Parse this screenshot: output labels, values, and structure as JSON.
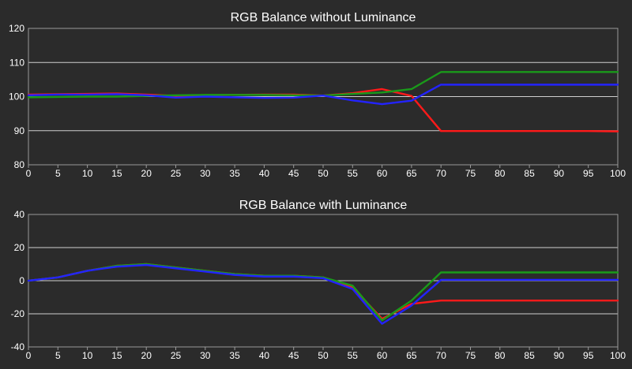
{
  "chart_data": [
    {
      "type": "line",
      "title": "RGB Balance without Luminance",
      "xlabel": "",
      "ylabel": "",
      "xlim": [
        0,
        100
      ],
      "ylim": [
        80,
        120
      ],
      "x": [
        0,
        5,
        10,
        15,
        20,
        25,
        30,
        35,
        40,
        45,
        50,
        55,
        60,
        65,
        70,
        75,
        80,
        85,
        90,
        95,
        100
      ],
      "x_ticks": [
        0,
        5,
        10,
        15,
        20,
        25,
        30,
        35,
        40,
        45,
        50,
        55,
        60,
        65,
        70,
        75,
        80,
        85,
        90,
        95,
        100
      ],
      "y_ticks": [
        80,
        90,
        100,
        110,
        120
      ],
      "grid": "horizontal",
      "series": [
        {
          "color": "#ff1a1a",
          "values": [
            100.6,
            100.7,
            100.8,
            100.9,
            100.6,
            100.2,
            100.4,
            100.5,
            100.6,
            100.6,
            100.3,
            101.0,
            102.2,
            100.2,
            89.9,
            89.9,
            89.9,
            89.9,
            89.9,
            89.9,
            89.8
          ]
        },
        {
          "color": "#1a9a1a",
          "values": [
            99.8,
            99.9,
            100.0,
            100.0,
            100.2,
            100.4,
            100.5,
            100.5,
            100.5,
            100.4,
            100.3,
            100.8,
            101.2,
            102.2,
            107.2,
            107.2,
            107.2,
            107.2,
            107.2,
            107.2,
            107.2
          ]
        },
        {
          "color": "#2323ff",
          "values": [
            100.4,
            100.6,
            100.6,
            100.7,
            100.4,
            99.7,
            100.0,
            99.8,
            99.6,
            99.7,
            100.3,
            98.9,
            97.8,
            98.8,
            103.5,
            103.5,
            103.5,
            103.5,
            103.5,
            103.5,
            103.5
          ]
        }
      ]
    },
    {
      "type": "line",
      "title": "RGB Balance with Luminance",
      "xlabel": "",
      "ylabel": "",
      "xlim": [
        0,
        100
      ],
      "ylim": [
        -40,
        40
      ],
      "x": [
        0,
        5,
        10,
        15,
        20,
        25,
        30,
        35,
        40,
        45,
        50,
        55,
        60,
        65,
        70,
        75,
        80,
        85,
        90,
        95,
        100
      ],
      "x_ticks": [
        0,
        5,
        10,
        15,
        20,
        25,
        30,
        35,
        40,
        45,
        50,
        55,
        60,
        65,
        70,
        75,
        80,
        85,
        90,
        95,
        100
      ],
      "y_ticks": [
        -40,
        -20,
        0,
        20,
        40
      ],
      "grid": "horizontal",
      "series": [
        {
          "color": "#ff1a1a",
          "values": [
            0,
            2,
            6,
            9,
            10,
            8,
            6,
            4,
            3,
            3,
            2,
            -4,
            -23,
            -14,
            -12,
            -12,
            -12,
            -12,
            -12,
            -12,
            -12
          ]
        },
        {
          "color": "#1a9a1a",
          "values": [
            0,
            2,
            6,
            9,
            10,
            8,
            6,
            4,
            3,
            3,
            2,
            -3,
            -24,
            -12,
            5,
            5,
            5,
            5,
            5,
            5,
            5
          ]
        },
        {
          "color": "#2323ff",
          "values": [
            0,
            2,
            6,
            8.5,
            9.5,
            7.5,
            5.5,
            3.5,
            2.5,
            2.5,
            1.5,
            -5,
            -26,
            -15,
            0.5,
            0.5,
            0.5,
            0.5,
            0.5,
            0.5,
            0.5
          ]
        }
      ]
    }
  ],
  "colors": {
    "background": "#2b2b2b",
    "plot_background": "#2b2b2b",
    "plot_border": "#9a9a9a",
    "grid": "#cfcfcf",
    "text": "#ffffff"
  }
}
